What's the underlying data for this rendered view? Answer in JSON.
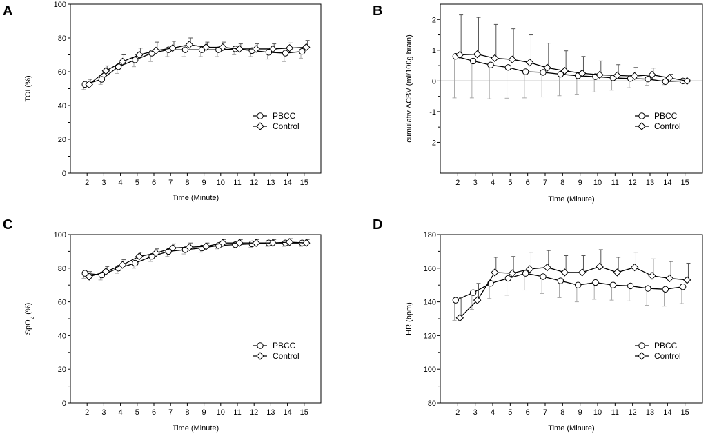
{
  "figure": {
    "panels": [
      "A",
      "B",
      "C",
      "D"
    ]
  },
  "legend": {
    "series1": "PBCC",
    "series2": "Control"
  },
  "colors": {
    "line": "#000000",
    "marker_fill": "#ffffff",
    "zero_line": "#333333",
    "errbar_faint": "#aaaaaa"
  },
  "chart_data": [
    {
      "panel": "A",
      "type": "line",
      "title": "",
      "xlabel": "Time (Minute)",
      "ylabel": "TOI (%)",
      "x": [
        2,
        3,
        4,
        5,
        6,
        7,
        8,
        9,
        10,
        11,
        12,
        13,
        14,
        15
      ],
      "xlim": [
        1,
        16
      ],
      "ylim": [
        0,
        100
      ],
      "yticks": [
        0,
        20,
        40,
        60,
        80,
        100
      ],
      "series": [
        {
          "name": "PBCC",
          "marker": "circle",
          "values": [
            52.5,
            55.5,
            63,
            67,
            71,
            73,
            73,
            73,
            73,
            73.5,
            72.5,
            71.5,
            71,
            72
          ],
          "err": [
            3,
            3,
            4,
            4,
            5,
            4,
            4,
            4,
            4,
            3.5,
            3.5,
            4,
            5,
            4
          ]
        },
        {
          "name": "Control",
          "marker": "diamond",
          "values": [
            52.5,
            60.5,
            66,
            70,
            72.5,
            74,
            76,
            74.5,
            74.5,
            73.5,
            73.5,
            73.5,
            74,
            74.5
          ],
          "err": [
            3,
            3,
            4,
            4,
            5,
            4,
            4,
            3,
            3,
            3,
            3,
            3,
            3,
            4
          ]
        }
      ]
    },
    {
      "panel": "B",
      "type": "line",
      "title": "",
      "xlabel": "Time (Minute)",
      "ylabel": "cumulativ ΔCBV (ml/100g brain)",
      "x": [
        2,
        3,
        4,
        5,
        6,
        7,
        8,
        9,
        10,
        11,
        12,
        13,
        14,
        15
      ],
      "xlim": [
        1,
        16
      ],
      "ylim": [
        -3,
        2.5
      ],
      "yticks": [
        -2,
        -1,
        0,
        1,
        2
      ],
      "series": [
        {
          "name": "PBCC",
          "marker": "circle",
          "values": [
            0.8,
            0.65,
            0.52,
            0.44,
            0.3,
            0.28,
            0.22,
            0.17,
            0.14,
            0.1,
            0.08,
            0.06,
            -0.02,
            0
          ],
          "err": [
            1.35,
            1.2,
            1.1,
            1.0,
            0.85,
            0.8,
            0.7,
            0.6,
            0.5,
            0.4,
            0.3,
            0.2,
            0.1,
            0.05
          ]
        },
        {
          "name": "Control",
          "marker": "diamond",
          "values": [
            0.85,
            0.87,
            0.74,
            0.7,
            0.6,
            0.43,
            0.33,
            0.25,
            0.2,
            0.18,
            0.16,
            0.2,
            0.1,
            0
          ],
          "err": [
            1.3,
            1.2,
            1.1,
            1.0,
            0.9,
            0.8,
            0.65,
            0.55,
            0.45,
            0.35,
            0.28,
            0.22,
            0.12,
            0.05
          ]
        }
      ]
    },
    {
      "panel": "C",
      "type": "line",
      "title": "",
      "xlabel": "Time (Minute)",
      "ylabel": "SpO",
      "ylabel_sub": "2",
      "ylabel_suffix": " (%)",
      "x": [
        2,
        3,
        4,
        5,
        6,
        7,
        8,
        9,
        10,
        11,
        12,
        13,
        14,
        15
      ],
      "xlim": [
        1,
        16
      ],
      "ylim": [
        0,
        100
      ],
      "yticks": [
        0,
        20,
        40,
        60,
        80,
        100
      ],
      "series": [
        {
          "name": "PBCC",
          "marker": "circle",
          "values": [
            77,
            76,
            80,
            83,
            87,
            90,
            91,
            92,
            93.5,
            94,
            94.5,
            95,
            95,
            95
          ],
          "err": [
            3,
            3,
            3,
            3,
            3,
            3,
            2.5,
            2.5,
            2,
            2,
            2,
            2,
            2,
            2
          ]
        },
        {
          "name": "Control",
          "marker": "diamond",
          "values": [
            75,
            78,
            82,
            87,
            89,
            92,
            92.5,
            93,
            95,
            95,
            95,
            95,
            95.5,
            95
          ],
          "err": [
            3,
            3,
            3,
            2.5,
            2.5,
            2.5,
            2.5,
            2,
            2,
            2,
            2,
            2,
            2,
            2
          ]
        }
      ]
    },
    {
      "panel": "D",
      "type": "line",
      "title": "",
      "xlabel": "Time (Minute)",
      "ylabel": "HR (bpm)",
      "x": [
        2,
        3,
        4,
        5,
        6,
        7,
        8,
        9,
        10,
        11,
        12,
        13,
        14,
        15
      ],
      "xlim": [
        1,
        16
      ],
      "ylim": [
        80,
        180
      ],
      "yticks": [
        80,
        100,
        120,
        140,
        160,
        180
      ],
      "series": [
        {
          "name": "PBCC",
          "marker": "circle",
          "values": [
            141,
            145.5,
            151,
            154,
            157,
            155,
            152.5,
            150,
            151.5,
            150,
            149.5,
            148,
            147.5,
            149
          ],
          "err": [
            12,
            10,
            9,
            10,
            10,
            10,
            10,
            10,
            10,
            9,
            9,
            10,
            10,
            10
          ]
        },
        {
          "name": "Control",
          "marker": "diamond",
          "values": [
            130.5,
            141,
            157.5,
            157,
            159.5,
            160.5,
            157.5,
            157.5,
            161,
            157.5,
            160.5,
            155.5,
            154,
            153
          ],
          "err": [
            12,
            10,
            9,
            10,
            10,
            10,
            10,
            10,
            10,
            9,
            9,
            10,
            10,
            10
          ]
        }
      ]
    }
  ]
}
